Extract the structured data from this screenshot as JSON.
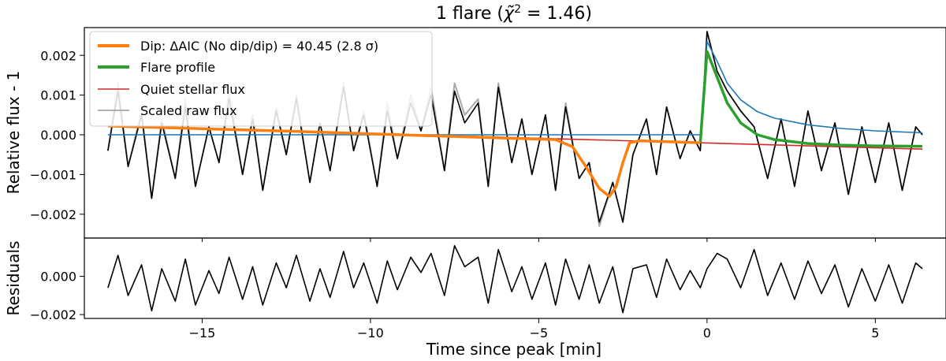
{
  "chart_data": {
    "type": "line",
    "title": "1 flare (χ̃² = 1.46)",
    "title_parts": {
      "prefix": "1 flare (",
      "symbol": "χ̃",
      "superscript": "2",
      "suffix": " = 1.46)"
    },
    "xlabel": "Time since peak [min]",
    "xlim": [
      -18.5,
      7.1
    ],
    "x_ticks": [
      -15,
      -10,
      -5,
      0,
      5
    ],
    "x_tick_labels": [
      "−15",
      "−10",
      "−5",
      "0",
      "5"
    ],
    "top_panel": {
      "ylabel": "Relative flux - 1",
      "ylim": [
        -0.0026,
        0.0027
      ],
      "y_ticks": [
        -0.002,
        -0.001,
        0.0,
        0.001,
        0.002
      ],
      "y_tick_labels": [
        "−0.002",
        "−0.001",
        "0.000",
        "0.001",
        "0.002"
      ],
      "legend_position": "upper-left",
      "legend": [
        {
          "label": "Dip: ΔAIC (No dip/dip) = 40.45 (2.8 σ)",
          "color": "#ff7f0e"
        },
        {
          "label": "Flare profile",
          "color": "#2ca02c"
        },
        {
          "label": "Quiet stellar flux",
          "color": "#d62728"
        },
        {
          "label": "Scaled raw flux",
          "color": "#999999"
        }
      ],
      "series": [
        {
          "name": "Scaled raw flux",
          "color": "#aaaaaa",
          "x": [
            -17.8,
            -17.5,
            -17.2,
            -16.8,
            -16.5,
            -16.2,
            -15.8,
            -15.5,
            -15.2,
            -14.8,
            -14.5,
            -14.2,
            -13.8,
            -13.5,
            -13.2,
            -12.8,
            -12.5,
            -12.2,
            -11.8,
            -11.5,
            -11.2,
            -10.8,
            -10.5,
            -10.2,
            -9.8,
            -9.5,
            -9.2,
            -8.8,
            -8.5,
            -8.2,
            -7.8,
            -7.5,
            -7.2,
            -6.8,
            -6.5,
            -6.2,
            -5.8,
            -5.5,
            -5.2,
            -4.8,
            -4.5,
            -4.2,
            -3.8,
            -3.5,
            -3.2,
            -2.8,
            -2.5,
            -2.2,
            -1.8,
            -1.5,
            -1.2,
            -0.8,
            -0.5,
            -0.2,
            0.0,
            0.3,
            0.6,
            1.0,
            1.4,
            1.8,
            2.2,
            2.6,
            3.0,
            3.4,
            3.8,
            4.2,
            4.6,
            5.0,
            5.4,
            5.8,
            6.2,
            6.4
          ],
          "y": [
            -0.0004,
            0.0013,
            -0.0008,
            0.0006,
            -0.0016,
            0.0004,
            -0.0011,
            0.0009,
            -0.0013,
            0.0002,
            -0.0007,
            0.0011,
            -0.001,
            0.0005,
            -0.0014,
            0.0007,
            -0.0005,
            0.001,
            -0.0012,
            0.0003,
            -0.0009,
            0.0013,
            -0.0004,
            0.0006,
            -0.0013,
            0.0008,
            -0.0006,
            0.001,
            0.0001,
            0.0012,
            -0.0009,
            0.0013,
            0.0005,
            0.0009,
            -0.0013,
            0.0013,
            -0.0007,
            0.0004,
            -0.001,
            0.0005,
            -0.0014,
            0.0008,
            -0.0011,
            -0.0007,
            -0.0023,
            -0.0012,
            -0.0022,
            -0.0005,
            0.0004,
            -0.001,
            0.0007,
            -0.0006,
            0.0001,
            -0.0004,
            0.0026,
            0.0016,
            0.0011,
            0.0006,
            0.0002,
            -0.0011,
            0.0004,
            -0.0013,
            0.0006,
            -0.0009,
            0.0003,
            -0.0015,
            0.0002,
            -0.0012,
            0.0003,
            -0.0014,
            0.0002,
            0.0
          ]
        },
        {
          "name": "Relative flux",
          "color": "#000000",
          "x": [
            -17.8,
            -17.5,
            -17.2,
            -16.8,
            -16.5,
            -16.2,
            -15.8,
            -15.5,
            -15.2,
            -14.8,
            -14.5,
            -14.2,
            -13.8,
            -13.5,
            -13.2,
            -12.8,
            -12.5,
            -12.2,
            -11.8,
            -11.5,
            -11.2,
            -10.8,
            -10.5,
            -10.2,
            -9.8,
            -9.5,
            -9.2,
            -8.8,
            -8.5,
            -8.2,
            -7.8,
            -7.5,
            -7.2,
            -6.8,
            -6.5,
            -6.2,
            -5.8,
            -5.5,
            -5.2,
            -4.8,
            -4.5,
            -4.2,
            -3.8,
            -3.5,
            -3.2,
            -2.8,
            -2.5,
            -2.2,
            -1.8,
            -1.5,
            -1.2,
            -0.8,
            -0.5,
            -0.2,
            0.0,
            0.3,
            0.6,
            1.0,
            1.4,
            1.8,
            2.2,
            2.6,
            3.0,
            3.4,
            3.8,
            4.2,
            4.6,
            5.0,
            5.4,
            5.8,
            6.2,
            6.4
          ],
          "y": [
            -0.0004,
            0.0011,
            -0.0008,
            0.0005,
            -0.0016,
            0.0003,
            -0.0011,
            0.0007,
            -0.0013,
            0.0002,
            -0.0007,
            0.0009,
            -0.001,
            0.0004,
            -0.0014,
            0.0006,
            -0.0005,
            0.0009,
            -0.0012,
            0.0003,
            -0.0009,
            0.0012,
            -0.0004,
            0.0005,
            -0.0013,
            0.0006,
            -0.0006,
            0.0008,
            0.0001,
            0.001,
            -0.0009,
            0.0011,
            0.0003,
            0.0008,
            -0.0013,
            0.0012,
            -0.0007,
            0.0004,
            -0.001,
            0.0005,
            -0.0014,
            0.0007,
            -0.0011,
            -0.0007,
            -0.0022,
            -0.0012,
            -0.0022,
            -0.0005,
            0.0004,
            -0.001,
            0.0007,
            -0.0006,
            0.0001,
            -0.0004,
            0.0026,
            0.0016,
            0.0011,
            0.0006,
            0.0002,
            -0.0011,
            0.0004,
            -0.0013,
            0.0006,
            -0.0009,
            0.0003,
            -0.0015,
            0.0002,
            -0.0012,
            0.0003,
            -0.0014,
            0.0002,
            0.0
          ]
        },
        {
          "name": "Quiet stellar flux",
          "color": "#d62728",
          "x": [
            -17.8,
            6.4
          ],
          "y": [
            0.00022,
            -0.00036
          ]
        },
        {
          "name": "Model",
          "color": "#1f77b4",
          "x": [
            -17.8,
            -8.0,
            -0.2,
            0.0,
            0.3,
            0.6,
            1.0,
            1.5,
            2.0,
            3.0,
            4.0,
            5.0,
            6.4
          ],
          "y": [
            0.0,
            0.0,
            0.0,
            0.00235,
            0.00185,
            0.0013,
            0.00088,
            0.00058,
            0.00042,
            0.00025,
            0.00016,
            0.0001,
            5e-05
          ]
        },
        {
          "name": "Flare profile",
          "color": "#2ca02c",
          "x": [
            -0.2,
            0.0,
            0.3,
            0.6,
            1.0,
            1.5,
            2.0,
            3.0,
            4.0,
            5.0,
            6.4
          ],
          "y": [
            -0.0002,
            0.0021,
            0.00145,
            0.0008,
            0.0003,
            0.0,
            -0.00012,
            -0.00022,
            -0.00026,
            -0.00028,
            -0.00029
          ]
        },
        {
          "name": "Dip",
          "color": "#ff7f0e",
          "x": [
            -17.8,
            -12.0,
            -8.0,
            -4.5,
            -4.0,
            -3.6,
            -3.2,
            -2.9,
            -2.7,
            -2.5,
            -2.3,
            -2.0,
            -0.2
          ],
          "y": [
            0.00022,
            8e-05,
            -3e-05,
            -0.00012,
            -0.0003,
            -0.0008,
            -0.00135,
            -0.00155,
            -0.0013,
            -0.0007,
            -0.0002,
            -0.00015,
            -0.0002
          ]
        }
      ]
    },
    "bottom_panel": {
      "ylabel": "Residuals",
      "ylim": [
        -0.0022,
        0.002
      ],
      "y_ticks": [
        -0.002,
        0.0
      ],
      "y_tick_labels": [
        "−0.002",
        "0.000"
      ],
      "series": [
        {
          "name": "Residuals",
          "color": "#000000",
          "x": [
            -17.8,
            -17.5,
            -17.2,
            -16.8,
            -16.5,
            -16.2,
            -15.8,
            -15.5,
            -15.2,
            -14.8,
            -14.5,
            -14.2,
            -13.8,
            -13.5,
            -13.2,
            -12.8,
            -12.5,
            -12.2,
            -11.8,
            -11.5,
            -11.2,
            -10.8,
            -10.5,
            -10.2,
            -9.8,
            -9.5,
            -9.2,
            -8.8,
            -8.5,
            -8.2,
            -7.8,
            -7.5,
            -7.2,
            -6.8,
            -6.5,
            -6.2,
            -5.8,
            -5.5,
            -5.2,
            -4.8,
            -4.5,
            -4.2,
            -3.8,
            -3.5,
            -3.2,
            -2.8,
            -2.5,
            -2.2,
            -1.8,
            -1.5,
            -1.2,
            -0.8,
            -0.5,
            -0.2,
            0.0,
            0.3,
            0.6,
            1.0,
            1.4,
            1.8,
            2.2,
            2.6,
            3.0,
            3.4,
            3.8,
            4.2,
            4.6,
            5.0,
            5.4,
            5.8,
            6.2,
            6.4
          ],
          "y": [
            -0.0006,
            0.0011,
            -0.001,
            0.0006,
            -0.0018,
            0.0004,
            -0.0013,
            0.0009,
            -0.0015,
            0.0003,
            -0.0009,
            0.001,
            -0.0012,
            0.0005,
            -0.0015,
            0.0007,
            -0.0006,
            0.0011,
            -0.0013,
            0.0004,
            -0.0011,
            0.0013,
            -0.0006,
            0.0007,
            -0.0014,
            0.0008,
            -0.0007,
            0.001,
            0.0002,
            0.0012,
            -0.001,
            0.0016,
            0.0005,
            0.001,
            -0.0014,
            0.0014,
            -0.0008,
            0.0005,
            -0.0012,
            0.0007,
            -0.0015,
            0.0009,
            -0.0012,
            0.0006,
            -0.0014,
            0.0005,
            -0.0019,
            0.0004,
            0.0006,
            -0.0011,
            0.0009,
            -0.0007,
            0.0003,
            -0.0006,
            0.0004,
            0.0012,
            0.0009,
            -0.0006,
            0.0014,
            -0.001,
            0.0007,
            -0.0012,
            0.0008,
            -0.0009,
            0.0006,
            -0.0016,
            0.0004,
            -0.0013,
            0.0006,
            -0.0014,
            0.0007,
            0.0004
          ]
        }
      ]
    }
  }
}
